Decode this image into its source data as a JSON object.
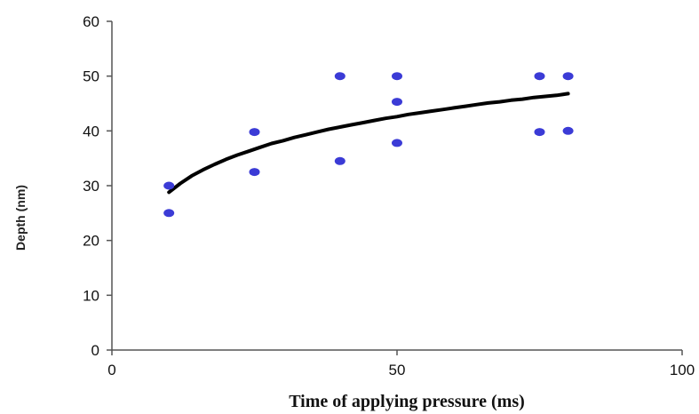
{
  "chart_data": {
    "type": "scatter",
    "xlabel": "Time of applying pressure (ms)",
    "ylabel": "Depth (nm)",
    "xlim": [
      0,
      100
    ],
    "ylim": [
      0,
      60
    ],
    "xticks": [
      0,
      50,
      100
    ],
    "yticks": [
      0,
      10,
      20,
      30,
      40,
      50,
      60
    ],
    "grid": false,
    "legend": false,
    "points": [
      {
        "x": 10,
        "y": 25
      },
      {
        "x": 10,
        "y": 30
      },
      {
        "x": 25,
        "y": 32.5
      },
      {
        "x": 25,
        "y": 39.8
      },
      {
        "x": 40,
        "y": 34.5
      },
      {
        "x": 40,
        "y": 50
      },
      {
        "x": 50,
        "y": 37.8
      },
      {
        "x": 50,
        "y": 45.3
      },
      {
        "x": 50,
        "y": 50
      },
      {
        "x": 75,
        "y": 39.8
      },
      {
        "x": 75,
        "y": 50
      },
      {
        "x": 80,
        "y": 40
      },
      {
        "x": 80,
        "y": 50
      }
    ],
    "trendline": {
      "type": "logarithmic",
      "x": [
        10,
        12,
        14,
        16,
        18,
        20,
        22,
        24,
        26,
        28,
        30,
        32,
        34,
        36,
        38,
        40,
        42,
        44,
        46,
        48,
        50,
        52,
        54,
        56,
        58,
        60,
        62,
        64,
        66,
        68,
        70,
        72,
        74,
        76,
        78,
        80
      ],
      "y": [
        28.8,
        30.4,
        31.8,
        32.9,
        33.9,
        34.8,
        35.6,
        36.3,
        37.0,
        37.7,
        38.2,
        38.8,
        39.3,
        39.8,
        40.3,
        40.7,
        41.1,
        41.5,
        41.9,
        42.3,
        42.6,
        43.0,
        43.3,
        43.6,
        43.9,
        44.2,
        44.5,
        44.8,
        45.1,
        45.3,
        45.6,
        45.8,
        46.1,
        46.3,
        46.5,
        46.8
      ]
    },
    "colors": {
      "points": "#3b3bd6",
      "trendline": "#000000",
      "axis": "#555555"
    }
  }
}
